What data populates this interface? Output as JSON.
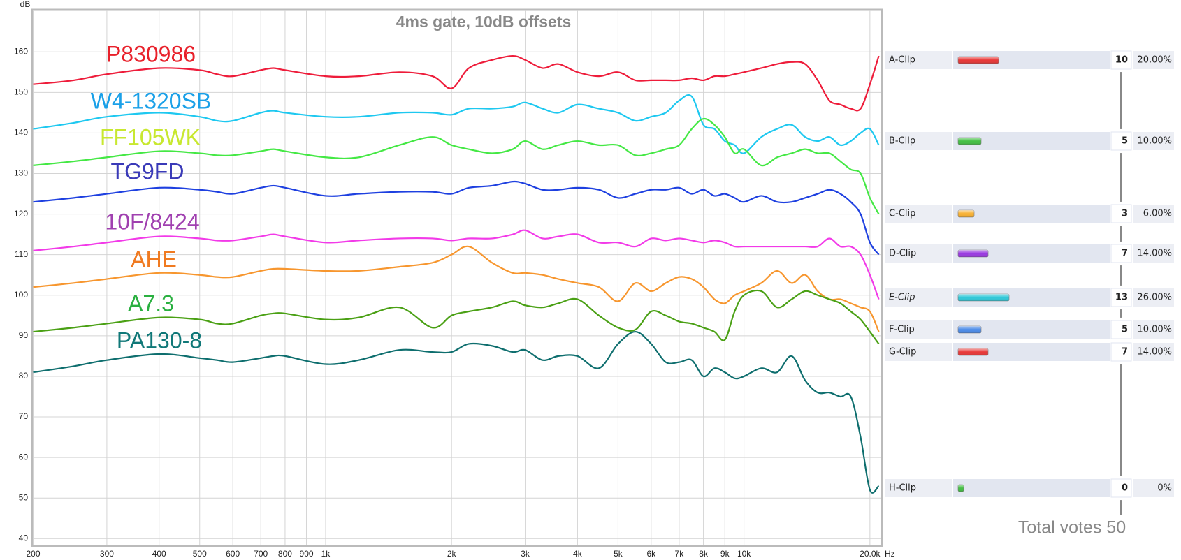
{
  "chart_data": {
    "type": "line",
    "title": "4ms gate, 10dB offsets",
    "y_label": "dB",
    "x_label": "Hz",
    "log_x": true,
    "grid": true,
    "xlim": [
      200,
      21200
    ],
    "ylim": [
      38.5,
      170.2
    ],
    "xticks": [
      200,
      300,
      400,
      500,
      600,
      700,
      800,
      900,
      {
        "value": 1000,
        "label": "1k"
      },
      {
        "value": 2000,
        "label": "2k"
      },
      {
        "value": 3000,
        "label": "3k"
      },
      {
        "value": 4000,
        "label": "4k"
      },
      {
        "value": 5000,
        "label": "5k"
      },
      {
        "value": 6000,
        "label": "6k"
      },
      {
        "value": 7000,
        "label": "7k"
      },
      {
        "value": 8000,
        "label": "8k"
      },
      {
        "value": 9000,
        "label": "9k"
      },
      {
        "value": 10000,
        "label": "10k"
      },
      {
        "value": 20000,
        "label": "20.0k"
      }
    ],
    "yticks": [
      40,
      50,
      60,
      70,
      80,
      90,
      100,
      110,
      120,
      130,
      140,
      150,
      160
    ],
    "x": [
      200,
      250,
      300,
      400,
      500,
      550,
      600,
      700,
      750,
      800,
      1000,
      1200,
      1500,
      1800,
      2000,
      2200,
      2500,
      2800,
      3000,
      3300,
      3600,
      4000,
      4500,
      5000,
      5500,
      6000,
      6500,
      7000,
      7500,
      8000,
      8500,
      9000,
      9500,
      10000,
      11000,
      12000,
      13000,
      14000,
      15000,
      16000,
      17000,
      18000,
      19000,
      20000,
      21000
    ],
    "series": [
      {
        "name": "P830986",
        "color": "#ee1c3a",
        "label_color": "#e8202a",
        "values": [
          152,
          153,
          154.5,
          156,
          155.5,
          154.5,
          154,
          155.5,
          156,
          155.5,
          154,
          154,
          155,
          154,
          151,
          156,
          158,
          159,
          158,
          156,
          157,
          155,
          154,
          155,
          153,
          153,
          153,
          153,
          153.5,
          153,
          154,
          154,
          154.5,
          155,
          156,
          157,
          157.5,
          157,
          153,
          148,
          147,
          146,
          146,
          152,
          159
        ]
      },
      {
        "name": "W4-1320SB",
        "color": "#1ec8f0",
        "label_color": "#1aa0e8",
        "values": [
          141,
          142.5,
          144,
          145,
          144,
          143,
          143,
          145,
          145.5,
          145,
          144,
          144,
          145,
          145,
          144.5,
          146,
          146,
          146.5,
          147.5,
          146,
          145,
          147,
          146,
          145,
          143,
          144,
          145,
          148,
          149,
          142,
          141,
          138,
          137,
          135,
          139,
          141,
          142,
          139,
          138,
          139,
          137,
          138,
          140,
          141,
          137
        ]
      },
      {
        "name": "FF105WK",
        "color": "#44e844",
        "label_color": "#c8e830",
        "values": [
          132,
          133,
          134,
          135.5,
          135,
          134.5,
          134.5,
          135.5,
          136,
          135.5,
          134,
          134,
          137,
          139,
          137,
          136,
          135,
          136,
          138,
          136,
          137,
          138,
          137,
          137,
          134.5,
          135,
          136,
          137,
          141,
          143.5,
          142,
          139,
          135,
          136,
          132,
          134,
          135,
          136,
          135,
          135,
          133,
          131,
          130,
          124,
          120
        ]
      },
      {
        "name": "TG9FD",
        "color": "#1e40e0",
        "label_color": "#3a3ab8",
        "values": [
          123,
          124,
          125,
          126.5,
          126,
          125.5,
          125,
          126.5,
          127,
          126.5,
          124.5,
          125,
          125.5,
          125.5,
          125,
          126.5,
          127,
          128,
          127.5,
          126,
          126,
          126.5,
          126,
          124,
          125,
          126,
          126,
          126.5,
          125,
          126,
          124.5,
          125,
          124,
          123,
          124.5,
          123,
          123,
          124,
          125,
          126,
          125,
          123,
          120,
          113,
          110
        ]
      },
      {
        "name": "10F/8424",
        "color": "#f23ae8",
        "label_color": "#a040b0",
        "values": [
          111,
          112,
          113,
          114.5,
          114,
          113.5,
          113.5,
          114.5,
          115,
          114.5,
          113,
          113.5,
          114,
          114,
          113.5,
          114,
          114,
          115,
          116,
          114,
          114.5,
          115,
          113,
          113,
          112,
          114,
          113.5,
          114,
          113.5,
          113,
          113.5,
          113,
          112,
          112,
          112,
          112,
          112,
          112,
          112,
          114,
          112,
          112,
          110,
          105,
          99
        ]
      },
      {
        "name": "AHE",
        "color": "#f7962e",
        "label_color": "#f07a20",
        "values": [
          102,
          103,
          104,
          105.5,
          105,
          104.5,
          104.5,
          106,
          106.5,
          106.5,
          106,
          106,
          107,
          108,
          110,
          112,
          108,
          105.5,
          105.5,
          105,
          104,
          103,
          102,
          98.5,
          103,
          101,
          103,
          104.5,
          104,
          102,
          99,
          98,
          100,
          101,
          103,
          106,
          103,
          105,
          101,
          99,
          99,
          98,
          97,
          96,
          91
        ]
      },
      {
        "name": "A7.3",
        "color": "#4aa014",
        "label_color": "#2ab040",
        "values": [
          91,
          92,
          93,
          94.5,
          94,
          93,
          93,
          95,
          95.5,
          95.5,
          94,
          94.5,
          97,
          92,
          95,
          96,
          97,
          98.5,
          97.5,
          97,
          98,
          99,
          95,
          92,
          91.5,
          96,
          95,
          93.5,
          93,
          92,
          91,
          89,
          96,
          100,
          101,
          97,
          99,
          101,
          100,
          99,
          98,
          96,
          94,
          91,
          88
        ]
      },
      {
        "name": "PA130-8",
        "color": "#0e6e6e",
        "label_color": "#107878",
        "values": [
          81,
          82.5,
          84,
          85.5,
          84.5,
          84,
          83.5,
          84.5,
          85,
          85,
          83,
          84,
          86.5,
          86,
          86,
          88,
          87.5,
          86,
          86.5,
          84,
          85,
          85,
          82,
          88,
          91,
          88,
          83.5,
          83.5,
          84,
          80,
          82,
          81,
          79.5,
          80,
          82,
          81,
          85,
          79,
          76,
          76,
          75,
          75,
          65,
          52,
          53
        ]
      }
    ]
  },
  "poll": {
    "rows": [
      {
        "label": "A-Clip",
        "votes": 10,
        "percent": "20.00%",
        "color": "#e83838"
      },
      {
        "label": "B-Clip",
        "votes": 5,
        "percent": "10.00%",
        "color": "#44c044"
      },
      {
        "label": "C-Clip",
        "votes": 3,
        "percent": "6.00%",
        "color": "#f8b030"
      },
      {
        "label": "D-Clip",
        "votes": 7,
        "percent": "14.00%",
        "color": "#9a3ae0"
      },
      {
        "label": "E-Clip",
        "votes": 13,
        "percent": "26.00%",
        "color": "#30c8d8",
        "italic": true
      },
      {
        "label": "F-Clip",
        "votes": 5,
        "percent": "10.00%",
        "color": "#4a8ae8"
      },
      {
        "label": "G-Clip",
        "votes": 7,
        "percent": "14.00%",
        "color": "#e83838"
      },
      {
        "label": "H-Clip",
        "votes": 0,
        "percent": "0%",
        "color": "#44c044"
      }
    ],
    "total": "Total votes 50"
  }
}
